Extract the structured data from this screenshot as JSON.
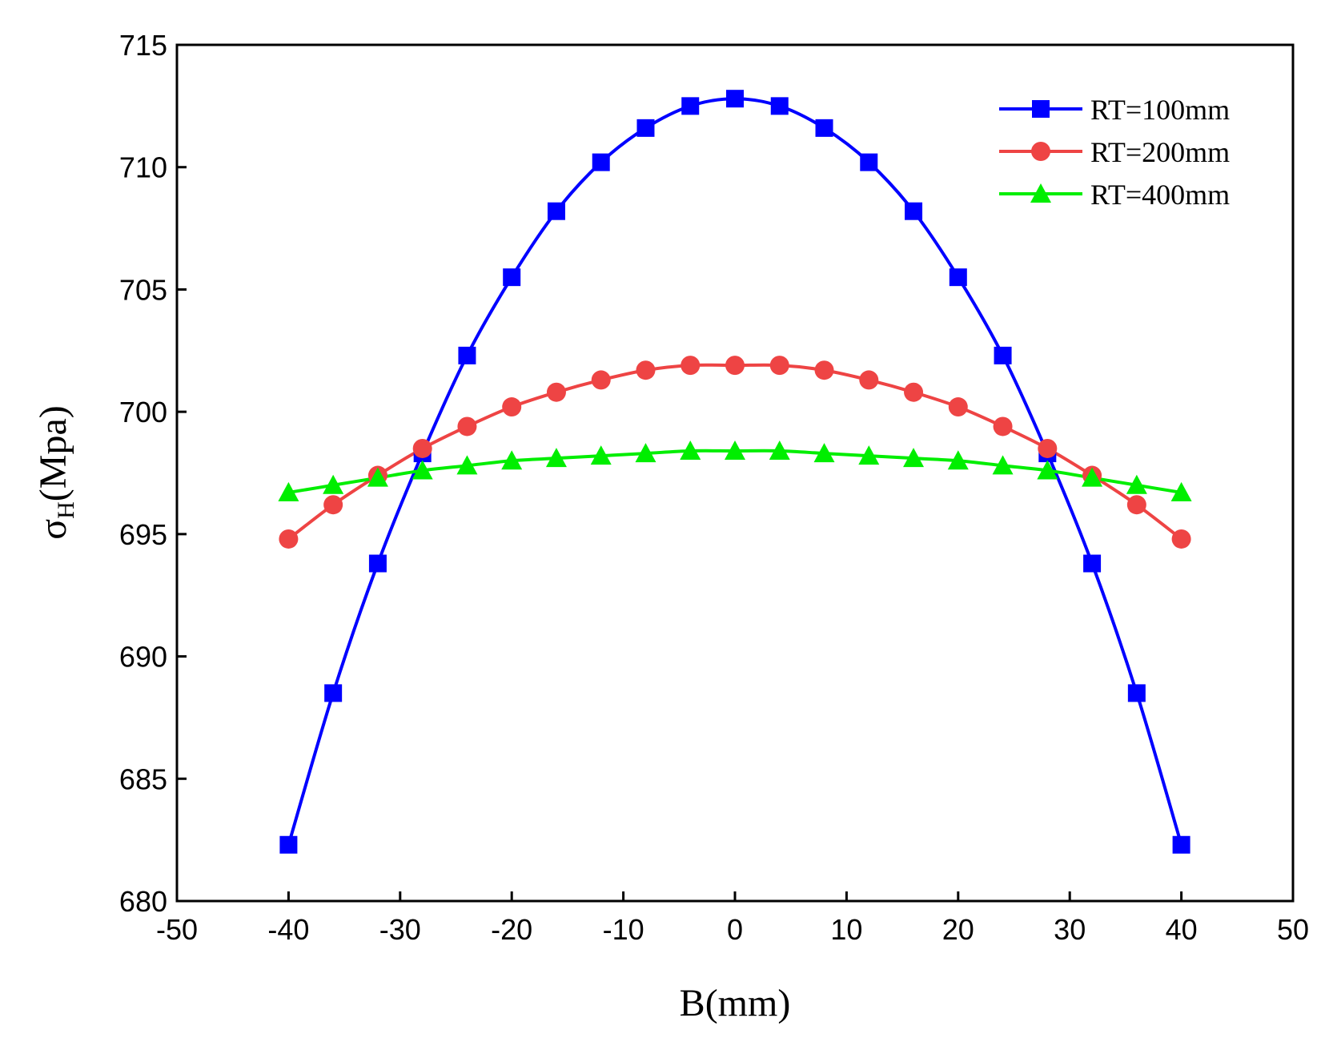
{
  "chart_data": {
    "type": "line",
    "title": "",
    "xlabel": "B(mm)",
    "ylabel": {
      "symbol": "σ",
      "subscript": "H",
      "unit": "(Mpa)"
    },
    "xlim": [
      -50,
      50
    ],
    "ylim": [
      680,
      715
    ],
    "xticks": [
      -50,
      -40,
      -30,
      -20,
      -10,
      0,
      10,
      20,
      30,
      40,
      50
    ],
    "yticks": [
      680,
      685,
      690,
      695,
      700,
      705,
      710,
      715
    ],
    "x": [
      -40,
      -36,
      -32,
      -28,
      -24,
      -20,
      -16,
      -12,
      -8,
      -4,
      0,
      4,
      8,
      12,
      16,
      20,
      24,
      28,
      32,
      36,
      40
    ],
    "legend_position": "top-right",
    "grid": false,
    "series": [
      {
        "name": "RT=100mm",
        "color": "#0000ff",
        "marker": "square",
        "values": [
          682.3,
          688.5,
          693.8,
          698.3,
          702.3,
          705.5,
          708.2,
          710.2,
          711.6,
          712.5,
          712.8,
          712.5,
          711.6,
          710.2,
          708.2,
          705.5,
          702.3,
          698.3,
          693.8,
          688.5,
          682.3
        ]
      },
      {
        "name": "RT=200mm",
        "color": "#ee4444",
        "marker": "circle",
        "values": [
          694.8,
          696.2,
          697.4,
          698.5,
          699.4,
          700.2,
          700.8,
          701.3,
          701.7,
          701.9,
          701.9,
          701.9,
          701.7,
          701.3,
          700.8,
          700.2,
          699.4,
          698.5,
          697.4,
          696.2,
          694.8
        ]
      },
      {
        "name": "RT=400mm",
        "color": "#00ee00",
        "marker": "triangle",
        "values": [
          696.7,
          697.0,
          697.3,
          697.6,
          697.8,
          698.0,
          698.1,
          698.2,
          698.3,
          698.4,
          698.4,
          698.4,
          698.3,
          698.2,
          698.1,
          698.0,
          697.8,
          697.6,
          697.3,
          697.0,
          696.7
        ]
      }
    ]
  }
}
